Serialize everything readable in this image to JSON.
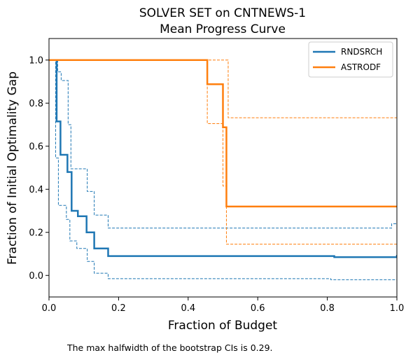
{
  "chart_data": {
    "type": "line",
    "title": "SOLVER SET on CNTNEWS-1",
    "subtitle": "Mean Progress Curve",
    "xlabel": "Fraction of Budget",
    "ylabel": "Fraction of Initial Optimality Gap",
    "xlim": [
      0,
      1
    ],
    "ylim": [
      -0.1,
      1.1
    ],
    "xticks": [
      "0.0",
      "0.2",
      "0.4",
      "0.6",
      "0.8",
      "1.0"
    ],
    "yticks": [
      "0.0",
      "0.2",
      "0.4",
      "0.6",
      "0.8",
      "1.0"
    ],
    "grid": false,
    "legend_position": "top-right",
    "footnote": "The max halfwidth of the bootstrap CIs is 0.29.",
    "series": [
      {
        "name": "RNDSRCH",
        "color": "#1f77b4",
        "style": "step",
        "x": [
          0.0,
          0.022,
          0.033,
          0.053,
          0.065,
          0.083,
          0.108,
          0.13,
          0.17,
          0.81,
          0.82,
          0.99,
          1.0
        ],
        "y": [
          1.0,
          0.715,
          0.56,
          0.48,
          0.3,
          0.275,
          0.2,
          0.125,
          0.09,
          0.09,
          0.085,
          0.085,
          0.095
        ],
        "ci_upper": {
          "x": [
            0.0,
            0.025,
            0.035,
            0.055,
            0.063,
            0.11,
            0.13,
            0.17,
            0.985,
            1.0
          ],
          "y": [
            1.0,
            0.945,
            0.905,
            0.7,
            0.495,
            0.39,
            0.28,
            0.22,
            0.24,
            0.24
          ]
        },
        "ci_lower": {
          "x": [
            0.0,
            0.019,
            0.027,
            0.05,
            0.06,
            0.08,
            0.11,
            0.13,
            0.17,
            0.81,
            0.985,
            1.0
          ],
          "y": [
            1.0,
            0.545,
            0.325,
            0.26,
            0.16,
            0.125,
            0.065,
            0.01,
            -0.015,
            -0.02,
            -0.02,
            -0.01
          ]
        }
      },
      {
        "name": "ASTRODF",
        "color": "#ff7f0e",
        "style": "step",
        "x": [
          0.0,
          0.455,
          0.5,
          0.51,
          0.515,
          1.0
        ],
        "y": [
          1.0,
          0.888,
          0.688,
          0.32,
          0.32,
          0.32
        ],
        "ci_upper": {
          "x": [
            0.0,
            0.515,
            1.0
          ],
          "y": [
            1.0,
            0.732,
            0.732
          ]
        },
        "ci_lower": {
          "x": [
            0.0,
            0.455,
            0.5,
            0.51,
            1.0
          ],
          "y": [
            1.0,
            0.705,
            0.415,
            0.145,
            0.145
          ]
        }
      }
    ]
  }
}
